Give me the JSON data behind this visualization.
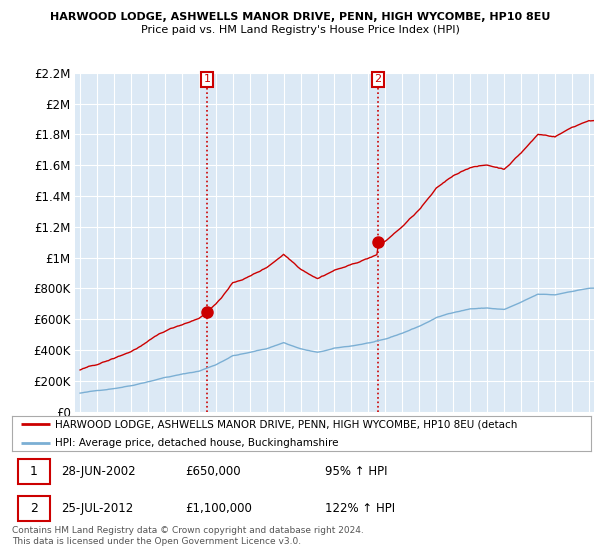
{
  "title1": "HARWOOD LODGE, ASHWELLS MANOR DRIVE, PENN, HIGH WYCOMBE, HP10 8EU",
  "title2": "Price paid vs. HM Land Registry's House Price Index (HPI)",
  "background_color": "#ffffff",
  "plot_bg_color": "#dce9f5",
  "grid_color": "#ffffff",
  "ylim": [
    0,
    2200000
  ],
  "yticks": [
    0,
    200000,
    400000,
    600000,
    800000,
    1000000,
    1200000,
    1400000,
    1600000,
    1800000,
    2000000,
    2200000
  ],
  "ytick_labels": [
    "£0",
    "£200K",
    "£400K",
    "£600K",
    "£800K",
    "£1M",
    "£1.2M",
    "£1.4M",
    "£1.6M",
    "£1.8M",
    "£2M",
    "£2.2M"
  ],
  "xmin_year": 1995,
  "xmax_year": 2025,
  "xticks": [
    1995,
    1996,
    1997,
    1998,
    1999,
    2000,
    2001,
    2002,
    2003,
    2004,
    2005,
    2006,
    2007,
    2008,
    2009,
    2010,
    2011,
    2012,
    2013,
    2014,
    2015,
    2016,
    2017,
    2018,
    2019,
    2020,
    2021,
    2022,
    2023,
    2024,
    2025
  ],
  "sale1_year": 2002.49,
  "sale1_price": 650000,
  "sale2_year": 2012.56,
  "sale2_price": 1100000,
  "red_line_color": "#cc0000",
  "blue_line_color": "#7bafd4",
  "legend_red_label": "HARWOOD LODGE, ASHWELLS MANOR DRIVE, PENN, HIGH WYCOMBE, HP10 8EU (detach",
  "legend_blue_label": "HPI: Average price, detached house, Buckinghamshire",
  "sale1_date": "28-JUN-2002",
  "sale1_hpi_label": "95% ↑ HPI",
  "sale2_date": "25-JUL-2012",
  "sale2_hpi_label": "122% ↑ HPI",
  "footer_text": "Contains HM Land Registry data © Crown copyright and database right 2024.\nThis data is licensed under the Open Government Licence v3.0."
}
